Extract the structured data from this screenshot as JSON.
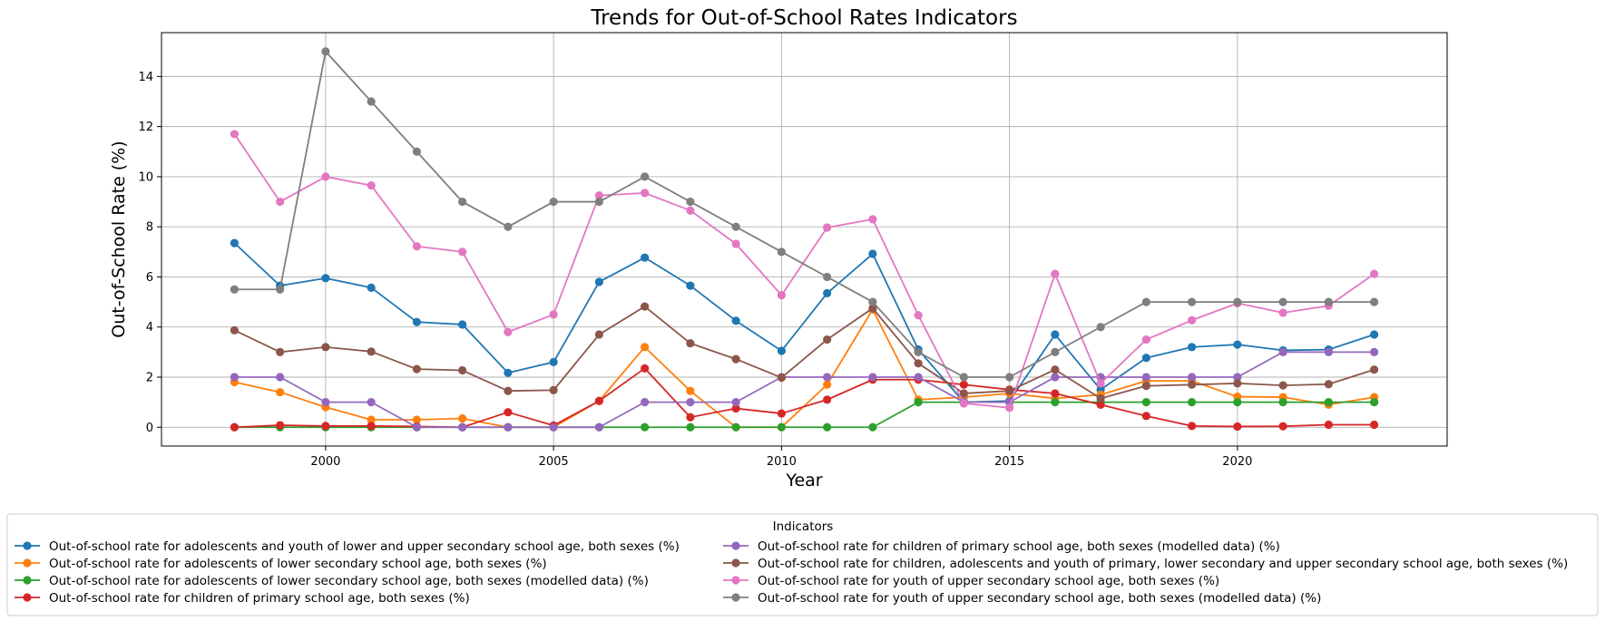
{
  "chart_data": {
    "type": "line",
    "title": "Trends for Out-of-School Rates Indicators",
    "xlabel": "Year",
    "ylabel": "Out-of-School Rate (%)",
    "xlim": [
      1996.4,
      2024.6
    ],
    "ylim": [
      -0.75,
      15.75
    ],
    "xticks": [
      2000,
      2005,
      2010,
      2015,
      2020
    ],
    "yticks": [
      0,
      2,
      4,
      6,
      8,
      10,
      12,
      14
    ],
    "grid": true,
    "legend": {
      "title": "Indicators",
      "placement": "below",
      "columns": 2
    },
    "x": [
      1998,
      1999,
      2000,
      2001,
      2002,
      2003,
      2004,
      2005,
      2006,
      2007,
      2008,
      2009,
      2010,
      2011,
      2012,
      2013,
      2014,
      2015,
      2016,
      2017,
      2018,
      2019,
      2020,
      2021,
      2022,
      2023
    ],
    "series": [
      {
        "name": "Out-of-school rate for adolescents and youth of lower and upper secondary school age, both sexes (%)",
        "color": "#1f77b4",
        "values": [
          7.35,
          5.65,
          5.95,
          5.57,
          4.2,
          4.1,
          2.17,
          2.6,
          5.8,
          6.77,
          5.65,
          4.25,
          3.05,
          5.35,
          6.92,
          3.1,
          1.0,
          1.05,
          3.7,
          1.5,
          2.77,
          3.2,
          3.3,
          3.07,
          3.1,
          3.7
        ]
      },
      {
        "name": "Out-of-school rate for adolescents of lower secondary school age, both sexes (%)",
        "color": "#ff7f0e",
        "values": [
          1.8,
          1.4,
          0.8,
          0.3,
          0.3,
          0.35,
          0.0,
          0.0,
          1.05,
          3.2,
          1.45,
          0.0,
          0.0,
          1.7,
          4.7,
          1.1,
          1.2,
          1.35,
          1.15,
          1.3,
          1.85,
          1.85,
          1.22,
          1.2,
          0.9,
          1.2
        ]
      },
      {
        "name": "Out-of-school rate for adolescents of lower secondary school age, both sexes (modelled data) (%)",
        "color": "#2ca02c",
        "values": [
          0,
          0,
          0,
          0,
          0,
          0,
          0,
          0,
          0,
          0,
          0,
          0,
          0,
          0,
          0,
          1,
          1,
          1,
          1,
          1,
          1,
          1,
          1,
          1,
          1,
          1
        ]
      },
      {
        "name": "Out-of-school rate for children of primary school age, both sexes (%)",
        "color": "#d62728",
        "values": [
          0.0,
          0.08,
          0.05,
          0.05,
          0.03,
          0.0,
          0.6,
          0.07,
          1.05,
          2.35,
          0.4,
          0.75,
          0.55,
          1.1,
          1.9,
          1.9,
          1.7,
          1.5,
          1.35,
          0.9,
          0.45,
          0.05,
          0.03,
          0.04,
          0.1,
          0.1
        ]
      },
      {
        "name": "Out-of-school rate for children of primary school age, both sexes (modelled data) (%)",
        "color": "#9467bd",
        "values": [
          2,
          2,
          1,
          1,
          0,
          0,
          0,
          0,
          0,
          1,
          1,
          1,
          2,
          2,
          2,
          2,
          1,
          1,
          2,
          2,
          2,
          2,
          2,
          3,
          3,
          3
        ]
      },
      {
        "name": "Out-of-school rate for children, adolescents and youth of primary, lower secondary and upper secondary school age, both sexes (%)",
        "color": "#8c564b",
        "values": [
          3.87,
          3.0,
          3.2,
          3.02,
          2.32,
          2.27,
          1.45,
          1.48,
          3.7,
          4.82,
          3.35,
          2.72,
          1.98,
          3.5,
          4.75,
          2.55,
          1.35,
          1.45,
          2.3,
          1.15,
          1.65,
          1.7,
          1.75,
          1.67,
          1.72,
          2.3
        ]
      },
      {
        "name": "Out-of-school rate for youth of upper secondary school age, both sexes (%)",
        "color": "#e377c2",
        "values": [
          11.7,
          9.0,
          10.0,
          9.65,
          7.22,
          7.0,
          3.8,
          4.5,
          9.25,
          9.35,
          8.65,
          7.32,
          5.27,
          7.97,
          8.3,
          4.47,
          0.95,
          0.78,
          6.12,
          1.75,
          3.5,
          4.27,
          4.95,
          4.57,
          4.85,
          6.12
        ]
      },
      {
        "name": "Out-of-school rate for youth of upper secondary school age, both sexes (modelled data) (%)",
        "color": "#7f7f7f",
        "values": [
          5.5,
          5.5,
          15,
          13,
          11,
          9,
          8,
          9,
          9,
          10,
          9,
          8,
          7,
          6,
          5,
          3,
          2,
          2,
          3,
          4,
          5,
          5,
          5,
          5,
          5,
          5
        ]
      }
    ]
  }
}
